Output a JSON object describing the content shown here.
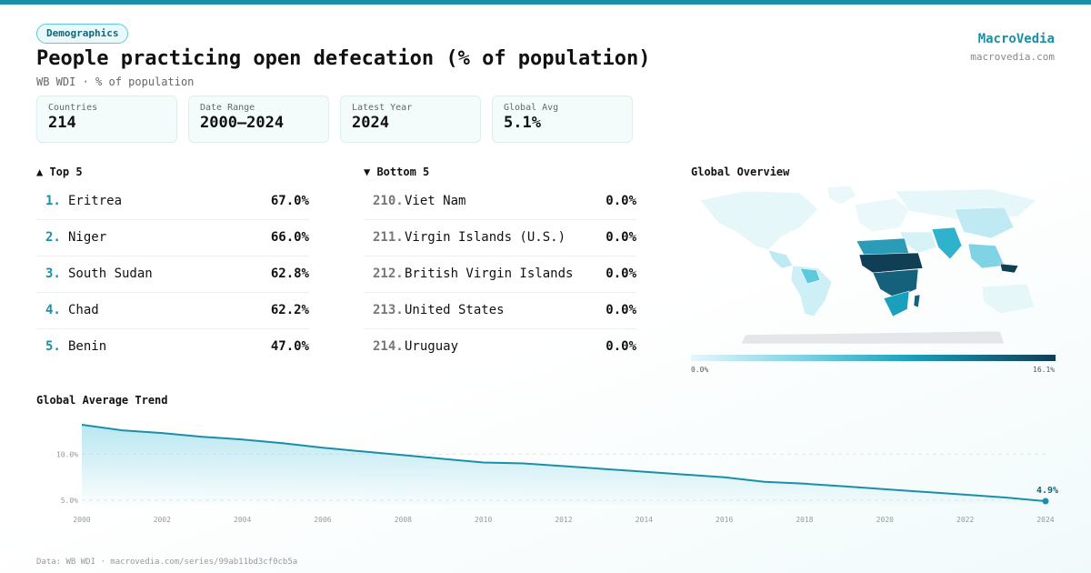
{
  "badge": "Demographics",
  "title": "People practicing open defecation (% of population)",
  "subtitle": "WB WDI · % of population",
  "brand": {
    "name": "MacroVedia",
    "url": "macrovedia.com"
  },
  "stats": [
    {
      "label": "Countries",
      "value": "214"
    },
    {
      "label": "Date Range",
      "value": "2000–2024"
    },
    {
      "label": "Latest Year",
      "value": "2024"
    },
    {
      "label": "Global Avg",
      "value": "5.1%"
    }
  ],
  "top": {
    "heading": "▲ Top 5",
    "items": [
      {
        "rank": "1.",
        "name": "Eritrea",
        "value": "67.0%"
      },
      {
        "rank": "2.",
        "name": "Niger",
        "value": "66.0%"
      },
      {
        "rank": "3.",
        "name": "South Sudan",
        "value": "62.8%"
      },
      {
        "rank": "4.",
        "name": "Chad",
        "value": "62.2%"
      },
      {
        "rank": "5.",
        "name": "Benin",
        "value": "47.0%"
      }
    ]
  },
  "bottom": {
    "heading": "▼ Bottom 5",
    "items": [
      {
        "rank": "210.",
        "name": "Viet Nam",
        "value": "0.0%"
      },
      {
        "rank": "211.",
        "name": "Virgin Islands (U.S.)",
        "value": "0.0%"
      },
      {
        "rank": "212.",
        "name": "British Virgin Islands",
        "value": "0.0%"
      },
      {
        "rank": "213.",
        "name": "United States",
        "value": "0.0%"
      },
      {
        "rank": "214.",
        "name": "Uruguay",
        "value": "0.0%"
      }
    ]
  },
  "map": {
    "heading": "Global Overview",
    "legend_min": "0.0%",
    "legend_max": "16.1%",
    "colors": {
      "low": "#e6f7fa",
      "mid": "#1aa0bd",
      "high": "#0f3e55",
      "nodata": "#e4e6ea"
    }
  },
  "trend_heading": "Global Average Trend",
  "footer": "Data: WB WDI · macrovedia.com/series/99ab11bd3cf0cb5a",
  "chart_data": {
    "type": "area",
    "title": "Global Average Trend",
    "x": [
      2000,
      2001,
      2002,
      2003,
      2004,
      2005,
      2006,
      2007,
      2008,
      2009,
      2010,
      2011,
      2012,
      2013,
      2014,
      2015,
      2016,
      2017,
      2018,
      2019,
      2020,
      2021,
      2022,
      2023,
      2024
    ],
    "y": [
      13.2,
      12.6,
      12.3,
      11.9,
      11.6,
      11.2,
      10.7,
      10.3,
      9.9,
      9.5,
      9.1,
      9.0,
      8.7,
      8.4,
      8.1,
      7.8,
      7.5,
      7.0,
      6.8,
      6.5,
      6.2,
      5.9,
      5.6,
      5.3,
      4.9
    ],
    "x_ticks": [
      "2000",
      "2002",
      "2004",
      "2006",
      "2008",
      "2010",
      "2012",
      "2014",
      "2016",
      "2018",
      "2020",
      "2022",
      "2024"
    ],
    "y_ticks": [
      "5.0%",
      "10.0%"
    ],
    "ylim": [
      5.0,
      13.2
    ],
    "end_label": "4.9%",
    "line_color": "#1a8fa8",
    "grid": "horizontal dashed"
  }
}
